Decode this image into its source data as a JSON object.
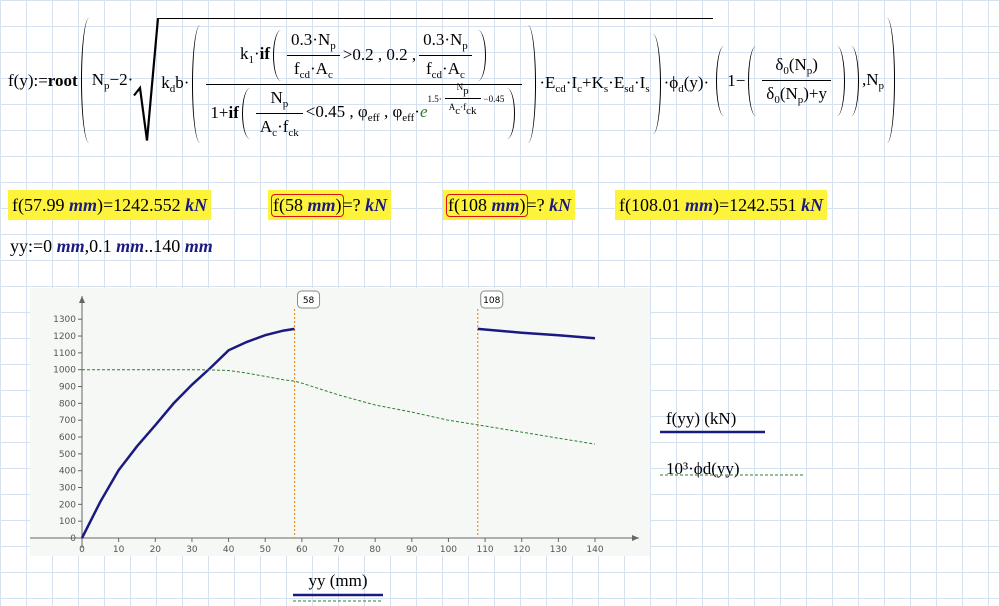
{
  "definition": {
    "lhs": [
      "f(y)",
      ":=",
      {
        "kw": "root"
      }
    ],
    "a": [
      "N",
      {
        "sub": "p"
      },
      "−2·"
    ],
    "b": [
      "k",
      {
        "sub": "d"
      },
      "b·"
    ],
    "num1": [
      "k",
      {
        "sub": "1"
      },
      "·",
      {
        "kw": "if"
      }
    ],
    "f03n": [
      "0.3·N",
      {
        "sub": "p"
      }
    ],
    "f03d": [
      "f",
      {
        "sub": "cd"
      },
      "·A",
      {
        "sub": "c"
      }
    ],
    "cond1": [
      ">0.2 , 0.2 ,"
    ],
    "den1": [
      "1+",
      {
        "kw": "if"
      }
    ],
    "fnn": [
      "N",
      {
        "sub": "p"
      }
    ],
    "fnd": [
      "A",
      {
        "sub": "c"
      },
      "·f",
      {
        "sub": "ck"
      }
    ],
    "cond2": [
      "<0.45 , φ",
      {
        "sub": "eff"
      },
      " , φ",
      {
        "sub": "eff"
      },
      "·",
      {
        "green": "e"
      }
    ],
    "exp1": [
      "1.5·"
    ],
    "exp2": [
      "−0.45"
    ],
    "tail": [
      "·E",
      {
        "sub": "cd"
      },
      "·I",
      {
        "sub": "c"
      },
      "+K",
      {
        "sub": "s"
      },
      "·E",
      {
        "sub": "sd"
      },
      "·I",
      {
        "sub": "s"
      }
    ],
    "phi": [
      "·ϕ",
      {
        "sub": "d"
      },
      "(y)·"
    ],
    "one": [
      "1−"
    ],
    "dn": [
      "δ",
      {
        "sub": "0"
      },
      "(N",
      {
        "sub": "p"
      },
      ")"
    ],
    "dd": [
      "δ",
      {
        "sub": "0"
      },
      "(N",
      {
        "sub": "p"
      },
      ")+y"
    ],
    "end": [
      ",N",
      {
        "sub": "p"
      }
    ]
  },
  "results": [
    {
      "call": [
        "f(57.99 ",
        {
          "unit": "mm"
        },
        ")"
      ],
      "result": [
        "=1242.552 ",
        {
          "unit": "kN"
        }
      ],
      "error": false
    },
    {
      "call": [
        "f(58 ",
        {
          "unit": "mm"
        },
        ")"
      ],
      "result": [
        "=? ",
        {
          "unit": "kN"
        }
      ],
      "error": true
    },
    {
      "call": [
        "f(108 ",
        {
          "unit": "mm"
        },
        ")"
      ],
      "result": [
        "=? ",
        {
          "unit": "kN"
        }
      ],
      "error": true
    },
    {
      "call": [
        "f(108.01 ",
        {
          "unit": "mm"
        },
        ")"
      ],
      "result": [
        "=1242.551 ",
        {
          "unit": "kN"
        }
      ],
      "error": false
    }
  ],
  "range": [
    "yy:=0 ",
    {
      "unit": "mm"
    },
    ",0.1 ",
    {
      "unit": "mm"
    },
    "..140 ",
    {
      "unit": "mm"
    }
  ],
  "chart_data": {
    "type": "line",
    "x_label": "yy (mm)",
    "x": [
      0,
      5,
      10,
      15,
      20,
      25,
      30,
      35,
      40,
      45,
      50,
      55,
      57.99,
      60,
      70,
      80,
      90,
      100,
      108,
      108.01,
      120,
      130,
      140
    ],
    "series": [
      {
        "name": "f(yy) (kN)",
        "color": "#1a1a80",
        "dashed": false,
        "values": [
          0,
          215,
          403,
          545,
          670,
          800,
          910,
          1010,
          1115,
          1165,
          1205,
          1232,
          1242.552,
          null,
          null,
          null,
          null,
          null,
          null,
          1242.551,
          1220,
          1205,
          1187
        ]
      },
      {
        "name": "10³·ϕd(yy)",
        "color": "#2e7d32",
        "dashed": true,
        "values": [
          1000,
          1000,
          1000,
          1000,
          1000,
          1000,
          1000,
          999,
          995,
          980,
          960,
          940,
          932,
          920,
          850,
          790,
          748,
          700,
          672,
          672,
          629,
          593,
          558
        ]
      }
    ],
    "markers": [
      58,
      108
    ],
    "marker_color": "#e8902a",
    "xlim": [
      0,
      152
    ],
    "ylim": [
      0,
      1420
    ],
    "xticks": [
      0,
      10,
      20,
      30,
      40,
      50,
      60,
      70,
      80,
      90,
      100,
      110,
      120,
      130,
      140
    ],
    "yticks": [
      0,
      100,
      200,
      300,
      400,
      500,
      600,
      700,
      800,
      900,
      1000,
      1100,
      1200,
      1300
    ]
  }
}
